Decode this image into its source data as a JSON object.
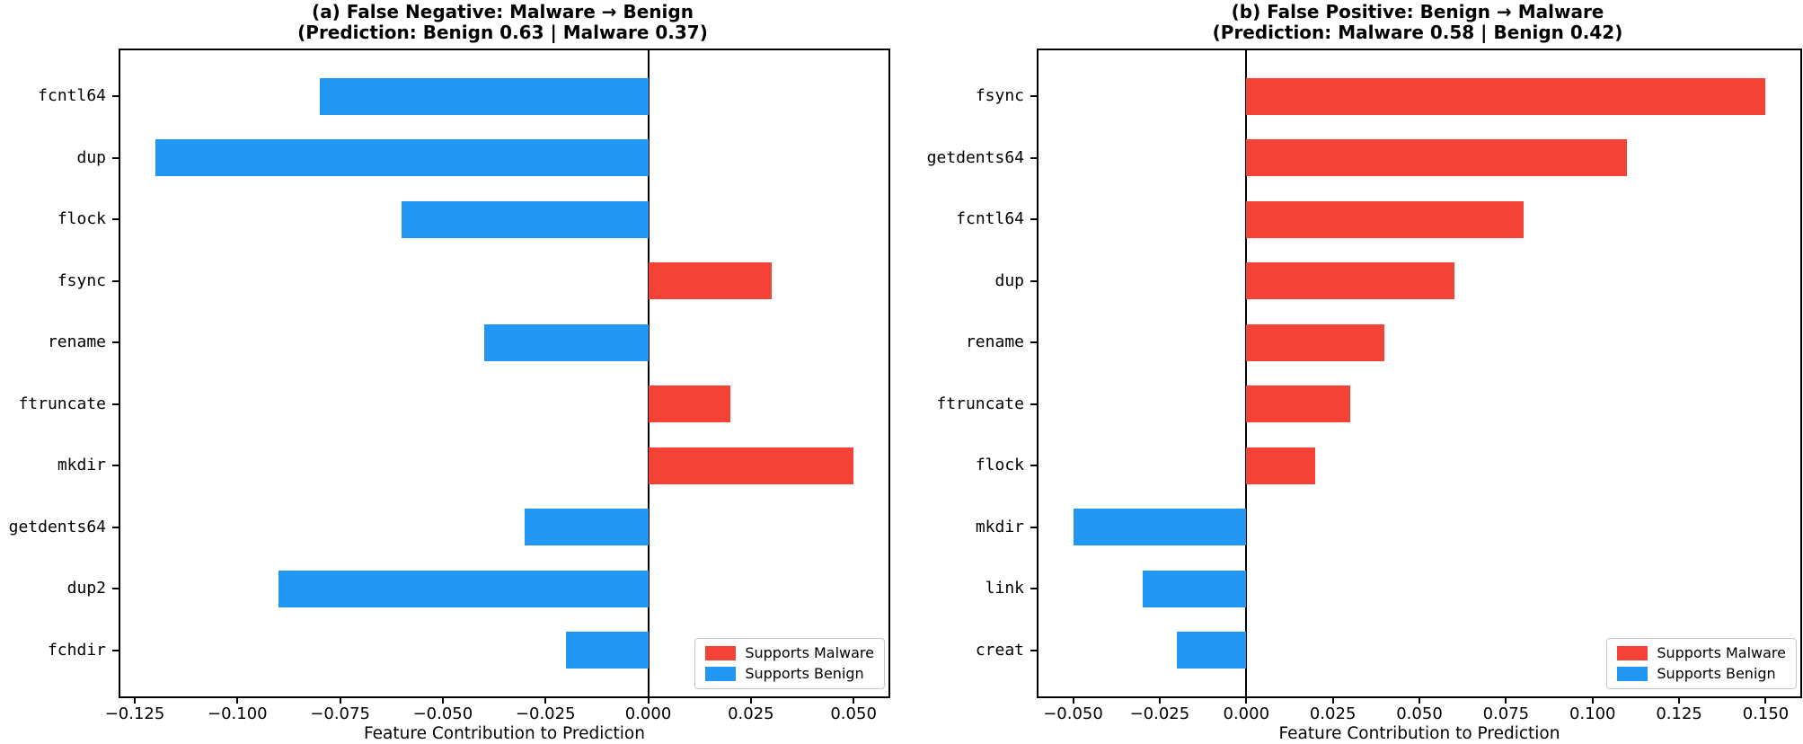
{
  "figure": {
    "colors": {
      "malware": "#f44336",
      "benign": "#2196f3",
      "axis": "#000000"
    },
    "legend": [
      {
        "key": "malware",
        "label": "Supports Malware"
      },
      {
        "key": "benign",
        "label": "Supports Benign"
      }
    ]
  },
  "chart_data": [
    {
      "type": "bar",
      "orientation": "horizontal",
      "title_lines": [
        "(a) False Negative: Malware → Benign",
        "(Prediction: Benign 0.63 | Malware 0.37)"
      ],
      "categories": [
        "fcntl64",
        "dup",
        "flock",
        "fsync",
        "rename",
        "ftruncate",
        "mkdir",
        "getdents64",
        "dup2",
        "fchdir"
      ],
      "values": [
        -0.08,
        -0.12,
        -0.06,
        0.03,
        -0.04,
        0.02,
        0.05,
        -0.03,
        -0.09,
        -0.02
      ],
      "xlabel": "Feature Contribution to Prediction",
      "xlim": [
        -0.1285,
        0.0585
      ],
      "xticks": [
        -0.125,
        -0.1,
        -0.075,
        -0.05,
        -0.025,
        0,
        0.025,
        0.05
      ],
      "legend_position": "lower right",
      "color_rule": "positive=malware, negative=benign",
      "grid": false
    },
    {
      "type": "bar",
      "orientation": "horizontal",
      "title_lines": [
        "(b) False Positive: Benign → Malware",
        "(Prediction: Malware 0.58 | Benign 0.42)"
      ],
      "categories": [
        "fsync",
        "getdents64",
        "fcntl64",
        "dup",
        "rename",
        "ftruncate",
        "flock",
        "mkdir",
        "link",
        "creat"
      ],
      "values": [
        0.15,
        0.11,
        0.08,
        0.06,
        0.04,
        0.03,
        0.02,
        -0.05,
        -0.03,
        -0.02
      ],
      "xlabel": "Feature Contribution to Prediction",
      "xlim": [
        -0.06,
        0.16
      ],
      "xticks": [
        -0.05,
        -0.025,
        0,
        0.025,
        0.05,
        0.075,
        0.1,
        0.125,
        0.15
      ],
      "legend_position": "lower right",
      "color_rule": "positive=malware, negative=benign",
      "grid": false
    }
  ]
}
